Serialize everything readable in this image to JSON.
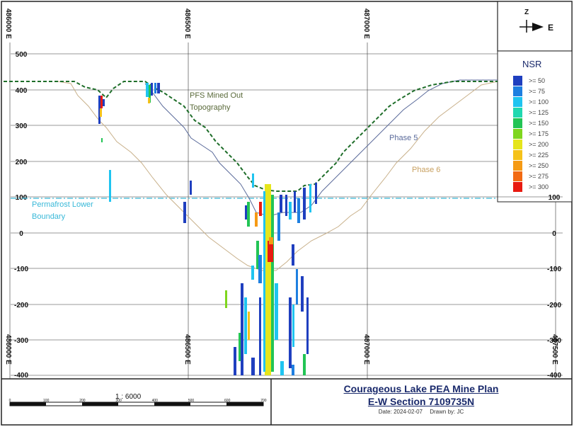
{
  "map": {
    "title": "Courageous Lake PEA Mine Plan",
    "section": "E-W Section 7109735N",
    "date": "Date: 2024-02-07",
    "drawn_by": "Drawn by: JC",
    "scale_label": "1 : 6000",
    "scale_ticks": [
      "0",
      "100",
      "200",
      "300",
      "400",
      "500",
      "600",
      "700"
    ],
    "north_label": "Z",
    "east_label": "E",
    "eastings": [
      "486000 E",
      "486500 E",
      "487000 E",
      "487500 E"
    ],
    "elev_left": [
      "500",
      "400",
      "300",
      "200",
      "100",
      "0",
      "-100",
      "-200",
      "-300",
      "-400"
    ],
    "elev_right": [
      "100",
      "0",
      "-100",
      "-200",
      "-300",
      "-400"
    ],
    "annotations": {
      "pfs": "PFS Mined Out",
      "pfs2": "Topography",
      "phase5": "Phase 5",
      "phase6": "Phase 6",
      "permafrost": "Permafrost Lower",
      "permafrost2": "Boundary"
    },
    "legend": {
      "title": "NSR",
      "items": [
        {
          "label": ">=  50",
          "color": "#1f3fbf"
        },
        {
          "label": ">=  75",
          "color": "#1e7fe0"
        },
        {
          "label": ">=  100",
          "color": "#1fc4f0"
        },
        {
          "label": ">=  125",
          "color": "#20d8b0"
        },
        {
          "label": ">=  150",
          "color": "#22c455"
        },
        {
          "label": ">=  175",
          "color": "#7fd61e"
        },
        {
          "label": ">=  200",
          "color": "#e5e51c"
        },
        {
          "label": ">=  225",
          "color": "#f5c21a"
        },
        {
          "label": ">=  250",
          "color": "#f59a14"
        },
        {
          "label": ">=  275",
          "color": "#f26a12"
        },
        {
          "label": ">=  300",
          "color": "#e81a10"
        }
      ]
    }
  }
}
